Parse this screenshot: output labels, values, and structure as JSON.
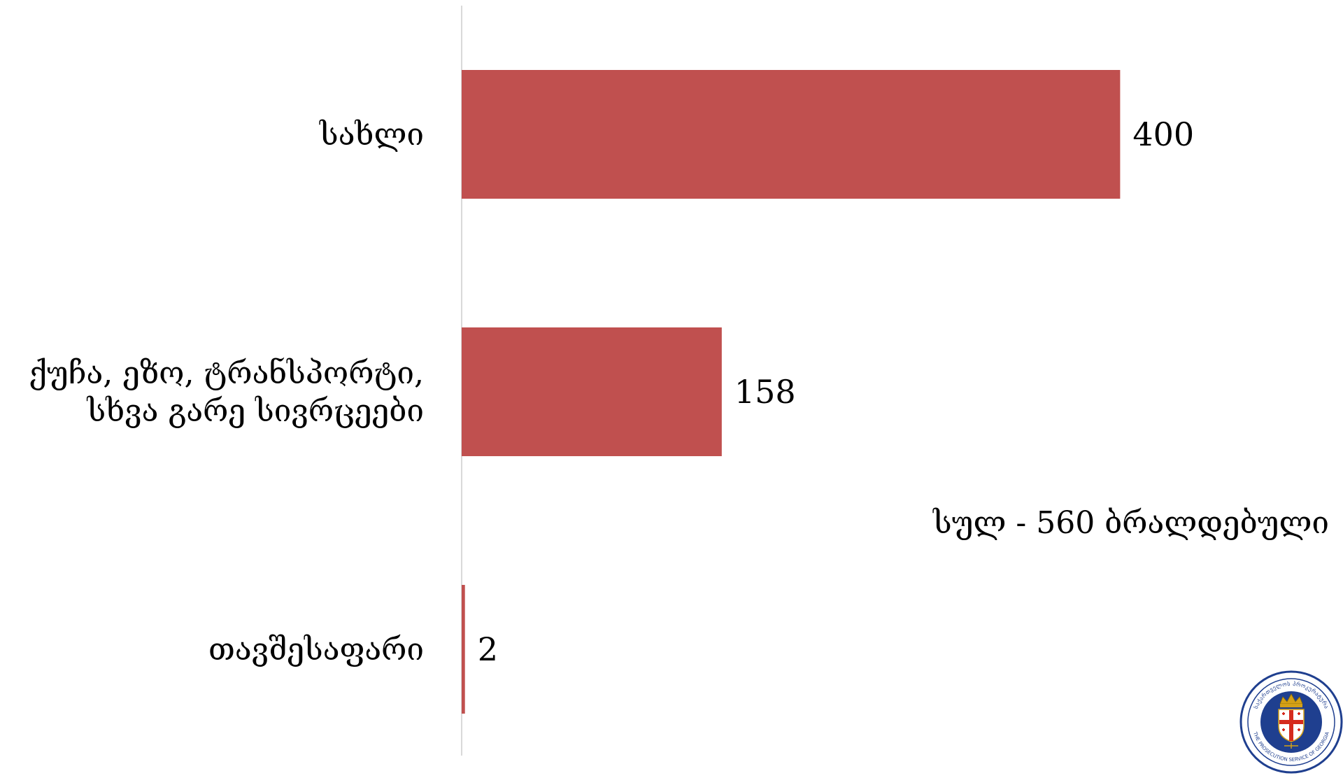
{
  "colors": {
    "bar": "#C0504F",
    "axis": "#D9D9D9",
    "logo_blue": "#1F3F8F",
    "logo_red": "#D52B1E",
    "logo_gold": "#D4A017"
  },
  "chart_data": {
    "type": "bar",
    "orientation": "horizontal",
    "categories": [
      "სახლი",
      "ქუჩა, ეზო, ტრანსპორტი, სხვა გარე სივრცეები",
      "თავშესაფარი"
    ],
    "category_lines": [
      [
        "სახლი"
      ],
      [
        "ქუჩა, ეზო, ტრანსპორტი,",
        "სხვა გარე სივრცეები"
      ],
      [
        "თავშესაფარი"
      ]
    ],
    "values": [
      400,
      158,
      2
    ],
    "xlim": [
      0,
      430
    ],
    "grid": false,
    "legend": "none"
  },
  "note": {
    "text": "სულ - 560 ბრალდებული"
  },
  "logo": {
    "icon": "prosecution-service-seal-icon",
    "text_top": "საქართველოს პროკურატურა",
    "text_bottom": "THE PROSECUTION SERVICE OF GEORGIA"
  }
}
